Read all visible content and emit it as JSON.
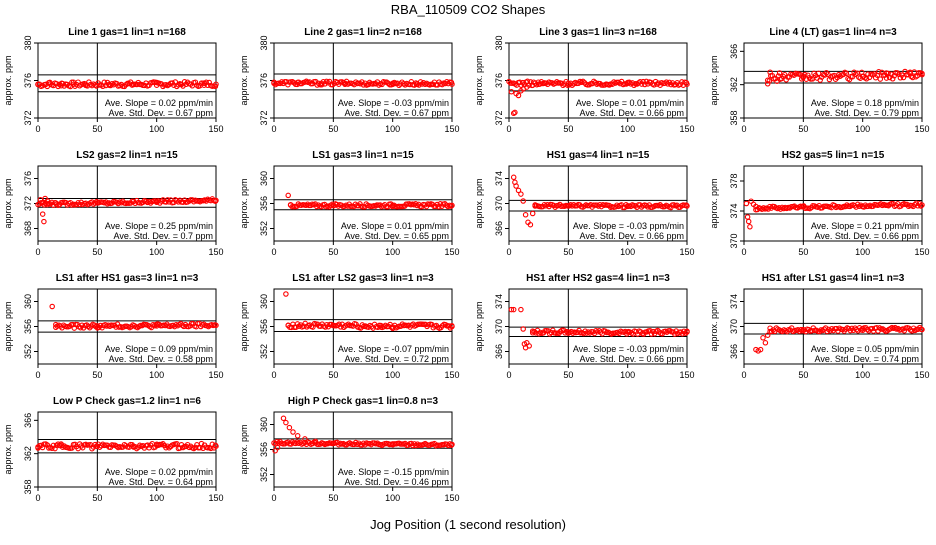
{
  "page": {
    "title": "RBA_110509  CO2 Shapes",
    "xlabel": "Jog Position (1 second resolution)"
  },
  "colors": {
    "points": "#ff0000",
    "axis": "#000000",
    "background": "#ffffff"
  },
  "chart_data": [
    {
      "type": "scatter",
      "title": "Line 1 gas=1 lin=1 n=168",
      "ylabel": "approx. ppm",
      "xlim": [
        0,
        150
      ],
      "ylim": [
        372,
        380
      ],
      "yticks": [
        372,
        376,
        380
      ],
      "xticks": [
        0,
        50,
        100,
        150
      ],
      "hlines": [
        376.6,
        374.8
      ],
      "vline": 50,
      "baseline": 375.6,
      "spread": 0.25,
      "slope": 0.02,
      "slope_text": "Ave. Slope = 0.02 ppm/min",
      "sd_text": "Ave. Std. Dev. = 0.67 ppm",
      "points": [
        [
          0,
          375.6
        ],
        [
          10,
          375.8
        ],
        [
          20,
          375.7
        ],
        [
          30,
          375.6
        ],
        [
          40,
          375.6
        ],
        [
          60,
          375.5
        ],
        [
          80,
          375.6
        ],
        [
          100,
          375.5
        ],
        [
          120,
          375.6
        ],
        [
          140,
          375.5
        ],
        [
          150,
          375.6
        ]
      ]
    },
    {
      "type": "scatter",
      "title": "Line 2 gas=1 lin=2 n=168",
      "ylabel": "approx. ppm",
      "xlim": [
        0,
        150
      ],
      "ylim": [
        372,
        380
      ],
      "yticks": [
        372,
        376,
        380
      ],
      "xticks": [
        0,
        50,
        100,
        150
      ],
      "hlines": [
        376.7,
        375.0
      ],
      "vline": 50,
      "baseline": 375.7,
      "spread": 0.2,
      "slope": -0.03,
      "slope_text": "Ave. Slope = -0.03 ppm/min",
      "sd_text": "Ave. Std. Dev. = 0.67 ppm",
      "points": [
        [
          0,
          375.7
        ],
        [
          20,
          375.8
        ],
        [
          40,
          375.7
        ],
        [
          60,
          375.7
        ],
        [
          80,
          375.6
        ],
        [
          100,
          375.7
        ],
        [
          120,
          375.6
        ],
        [
          150,
          375.6
        ]
      ]
    },
    {
      "type": "scatter",
      "title": "Line 3 gas=1 lin=3 n=168",
      "ylabel": "approx. ppm",
      "xlim": [
        0,
        150
      ],
      "ylim": [
        372,
        380
      ],
      "yticks": [
        372,
        376,
        380
      ],
      "xticks": [
        0,
        50,
        100,
        150
      ],
      "hlines": [
        376.6,
        374.9
      ],
      "vline": 50,
      "baseline": 375.7,
      "spread": 0.22,
      "slope": 0.01,
      "slope_text": "Ave. Slope = 0.01 ppm/min",
      "sd_text": "Ave. Std. Dev. = 0.66 ppm",
      "points": [
        [
          2,
          374.8
        ],
        [
          4,
          372.5
        ],
        [
          5,
          372.6
        ],
        [
          6,
          374.6
        ],
        [
          8,
          374.4
        ],
        [
          10,
          374.9
        ],
        [
          12,
          375.1
        ],
        [
          15,
          375.3
        ],
        [
          20,
          375.5
        ],
        [
          25,
          375.6
        ],
        [
          30,
          375.7
        ],
        [
          50,
          375.7
        ],
        [
          100,
          375.7
        ],
        [
          150,
          375.6
        ]
      ]
    },
    {
      "type": "scatter",
      "title": "Line 4 (LT) gas=1 lin=4 n=3",
      "ylabel": "approx. ppm",
      "xlim": [
        0,
        150
      ],
      "ylim": [
        358,
        367
      ],
      "yticks": [
        358,
        362,
        366
      ],
      "xticks": [
        0,
        50,
        100,
        150
      ],
      "hlines": [
        363.6,
        362.2
      ],
      "vline": 50,
      "baseline": 363.0,
      "spread": 0.45,
      "xstart": 20,
      "slope": 0.18,
      "slope_text": "Ave. Slope = 0.18 ppm/min",
      "sd_text": "Ave. Std. Dev. = 0.79 ppm",
      "points": [
        [
          20,
          362.1
        ],
        [
          22,
          363.5
        ],
        [
          30,
          363.4
        ],
        [
          50,
          363.0
        ],
        [
          80,
          363.2
        ],
        [
          100,
          363.0
        ],
        [
          120,
          363.4
        ],
        [
          140,
          363.5
        ],
        [
          150,
          363.2
        ]
      ]
    },
    {
      "type": "scatter",
      "title": "LS2 gas=2 lin=1 n=15",
      "ylabel": "approx. ppm",
      "xlim": [
        0,
        150
      ],
      "ylim": [
        366,
        378
      ],
      "yticks": [
        368,
        372,
        376
      ],
      "xticks": [
        0,
        50,
        100,
        150
      ],
      "hlines": [
        372.8,
        371.4
      ],
      "vline": 50,
      "baseline": 372.2,
      "spread": 0.25,
      "slope": 0.25,
      "slope_text": "Ave. Slope = 0.25 ppm/min",
      "sd_text": "Ave. Std. Dev. = 0.7 ppm",
      "points": [
        [
          2,
          372.6
        ],
        [
          4,
          370.3
        ],
        [
          5,
          369.1
        ],
        [
          6,
          372.8
        ],
        [
          8,
          372.4
        ],
        [
          15,
          372.1
        ],
        [
          50,
          372.1
        ],
        [
          100,
          372.2
        ],
        [
          150,
          372.5
        ]
      ]
    },
    {
      "type": "scatter",
      "title": "LS1 gas=3 lin=1 n=15",
      "ylabel": "approx. ppm",
      "xlim": [
        0,
        150
      ],
      "ylim": [
        350,
        362
      ],
      "yticks": [
        352,
        356,
        360
      ],
      "xticks": [
        0,
        50,
        100,
        150
      ],
      "hlines": [
        356.6,
        355.0
      ],
      "vline": 50,
      "baseline": 355.7,
      "spread": 0.25,
      "xstart": 14,
      "slope": 0.01,
      "slope_text": "Ave. Slope = 0.01 ppm/min",
      "sd_text": "Ave. Std. Dev. = 0.65 ppm",
      "points": [
        [
          12,
          357.3
        ],
        [
          14,
          355.8
        ],
        [
          50,
          355.7
        ],
        [
          100,
          355.7
        ],
        [
          150,
          355.7
        ]
      ]
    },
    {
      "type": "scatter",
      "title": "HS1 gas=4 lin=1 n=15",
      "ylabel": "approx. ppm",
      "xlim": [
        0,
        150
      ],
      "ylim": [
        364,
        376
      ],
      "yticks": [
        366,
        370,
        374
      ],
      "xticks": [
        0,
        50,
        100,
        150
      ],
      "hlines": [
        370.5,
        368.8
      ],
      "vline": 50,
      "baseline": 369.6,
      "spread": 0.22,
      "xstart": 22,
      "slope": -0.03,
      "slope_text": "Ave. Slope = -0.03 ppm/min",
      "sd_text": "Ave. Std. Dev. = 0.66 ppm",
      "points": [
        [
          4,
          374.2
        ],
        [
          5,
          373.4
        ],
        [
          6,
          372.8
        ],
        [
          8,
          372.1
        ],
        [
          10,
          371.5
        ],
        [
          12,
          370.4
        ],
        [
          14,
          368.2
        ],
        [
          16,
          367.0
        ],
        [
          18,
          366.6
        ],
        [
          20,
          368.4
        ],
        [
          22,
          369.6
        ],
        [
          50,
          369.6
        ],
        [
          100,
          369.6
        ],
        [
          150,
          369.6
        ]
      ]
    },
    {
      "type": "scatter",
      "title": "HS2 gas=5 lin=1 n=15",
      "ylabel": "approx. ppm",
      "xlim": [
        0,
        150
      ],
      "ylim": [
        370,
        380
      ],
      "yticks": [
        370,
        374,
        378
      ],
      "xticks": [
        0,
        50,
        100,
        150
      ],
      "hlines": [
        375.4,
        373.6
      ],
      "vline": 50,
      "baseline": 374.6,
      "spread": 0.22,
      "xstart": 10,
      "slope": 0.21,
      "slope_text": "Ave. Slope = 0.21 ppm/min",
      "sd_text": "Ave. Std. Dev. = 0.66 ppm",
      "points": [
        [
          2,
          375.0
        ],
        [
          3,
          373.2
        ],
        [
          4,
          372.6
        ],
        [
          5,
          371.9
        ],
        [
          6,
          375.3
        ],
        [
          8,
          374.9
        ],
        [
          10,
          374.6
        ],
        [
          50,
          374.6
        ],
        [
          100,
          374.6
        ],
        [
          150,
          374.8
        ]
      ]
    },
    {
      "type": "scatter",
      "title": "LS1 after HS1 gas=3 lin=1 n=3",
      "ylabel": "approx. ppm",
      "xlim": [
        0,
        150
      ],
      "ylim": [
        350,
        362
      ],
      "yticks": [
        352,
        356,
        360
      ],
      "xticks": [
        0,
        50,
        100,
        150
      ],
      "hlines": [
        356.9,
        355.1
      ],
      "vline": 50,
      "baseline": 356.1,
      "spread": 0.3,
      "xstart": 15,
      "slope": 0.09,
      "slope_text": "Ave. Slope = 0.09 ppm/min",
      "sd_text": "Ave. Std. Dev. = 0.58 ppm",
      "points": [
        [
          12,
          359.2
        ],
        [
          15,
          356.3
        ],
        [
          50,
          356.1
        ],
        [
          100,
          356.1
        ],
        [
          150,
          356.2
        ]
      ]
    },
    {
      "type": "scatter",
      "title": "LS1 after LS2 gas=3 lin=1 n=3",
      "ylabel": "approx. ppm",
      "xlim": [
        0,
        150
      ],
      "ylim": [
        350,
        362
      ],
      "yticks": [
        352,
        356,
        360
      ],
      "xticks": [
        0,
        50,
        100,
        150
      ],
      "hlines": [
        357.1,
        355.2
      ],
      "vline": 50,
      "baseline": 356.1,
      "spread": 0.35,
      "xstart": 12,
      "slope": -0.07,
      "slope_text": "Ave. Slope = -0.07 ppm/min",
      "sd_text": "Ave. Std. Dev. = 0.72 ppm",
      "points": [
        [
          10,
          361.2
        ],
        [
          12,
          356.2
        ],
        [
          50,
          356.2
        ],
        [
          90,
          355.9
        ],
        [
          100,
          355.7
        ],
        [
          150,
          356.0
        ]
      ]
    },
    {
      "type": "scatter",
      "title": "HS1 after HS2 gas=4 lin=1 n=3",
      "ylabel": "approx. ppm",
      "xlim": [
        0,
        150
      ],
      "ylim": [
        364,
        376
      ],
      "yticks": [
        366,
        370,
        374
      ],
      "xticks": [
        0,
        50,
        100,
        150
      ],
      "hlines": [
        369.9,
        368.4
      ],
      "vline": 50,
      "baseline": 369.1,
      "spread": 0.3,
      "xstart": 20,
      "slope": -0.03,
      "slope_text": "Ave. Slope = -0.03 ppm/min",
      "sd_text": "Ave. Std. Dev. = 0.66 ppm",
      "points": [
        [
          2,
          372.7
        ],
        [
          4,
          372.7
        ],
        [
          10,
          372.7
        ],
        [
          12,
          369.6
        ],
        [
          13,
          367.2
        ],
        [
          14,
          366.6
        ],
        [
          15,
          367.4
        ],
        [
          17,
          366.9
        ],
        [
          20,
          369.0
        ],
        [
          50,
          369.1
        ],
        [
          100,
          369.1
        ],
        [
          150,
          369.1
        ]
      ]
    },
    {
      "type": "scatter",
      "title": "HS1 after LS1 gas=4 lin=1 n=3",
      "ylabel": "approx. ppm",
      "xlim": [
        0,
        150
      ],
      "ylim": [
        364,
        376
      ],
      "yticks": [
        366,
        370,
        374
      ],
      "xticks": [
        0,
        50,
        100,
        150
      ],
      "hlines": [
        370.5,
        368.8
      ],
      "vline": 50,
      "baseline": 369.5,
      "spread": 0.3,
      "xstart": 22,
      "slope": 0.05,
      "slope_text": "Ave. Slope = 0.05 ppm/min",
      "sd_text": "Ave. Std. Dev. = 0.74 ppm",
      "points": [
        [
          10,
          366.3
        ],
        [
          12,
          366.1
        ],
        [
          14,
          366.3
        ],
        [
          16,
          368.2
        ],
        [
          18,
          367.4
        ],
        [
          20,
          368.6
        ],
        [
          22,
          369.2
        ],
        [
          50,
          369.5
        ],
        [
          100,
          369.4
        ],
        [
          150,
          369.5
        ]
      ]
    },
    {
      "type": "scatter",
      "title": "Low P Check gas=1.2 lin=1 n=6",
      "ylabel": "approx. ppm",
      "xlim": [
        0,
        150
      ],
      "ylim": [
        358,
        367
      ],
      "yticks": [
        358,
        362,
        366
      ],
      "xticks": [
        0,
        50,
        100,
        150
      ],
      "hlines": [
        363.7,
        362.1
      ],
      "vline": 50,
      "baseline": 362.9,
      "spread": 0.3,
      "slope": 0.02,
      "slope_text": "Ave. Slope = 0.02 ppm/min",
      "sd_text": "Ave. Std. Dev. = 0.64 ppm",
      "points": [
        [
          0,
          362.8
        ],
        [
          20,
          363.0
        ],
        [
          50,
          362.9
        ],
        [
          80,
          362.9
        ],
        [
          100,
          363.0
        ],
        [
          150,
          362.9
        ]
      ]
    },
    {
      "type": "scatter",
      "title": "High P Check gas=1 lin=0.8 n=3",
      "ylabel": "approx. ppm",
      "xlim": [
        0,
        150
      ],
      "ylim": [
        350,
        362
      ],
      "yticks": [
        352,
        356,
        360
      ],
      "xticks": [
        0,
        50,
        100,
        150
      ],
      "hlines": [
        357.7,
        356.2
      ],
      "vline": 50,
      "baseline": 356.9,
      "spread": 0.2,
      "slope": -0.15,
      "slope_text": "Ave. Slope = -0.15 ppm/min",
      "sd_text": "Ave. Std. Dev. = 0.46 ppm",
      "points": [
        [
          1,
          355.8
        ],
        [
          3,
          356.3
        ],
        [
          8,
          361.0
        ],
        [
          10,
          360.3
        ],
        [
          13,
          359.5
        ],
        [
          16,
          358.8
        ],
        [
          20,
          358.2
        ],
        [
          26,
          357.7
        ],
        [
          35,
          357.3
        ],
        [
          50,
          357.0
        ],
        [
          100,
          356.9
        ],
        [
          150,
          356.8
        ]
      ]
    }
  ]
}
